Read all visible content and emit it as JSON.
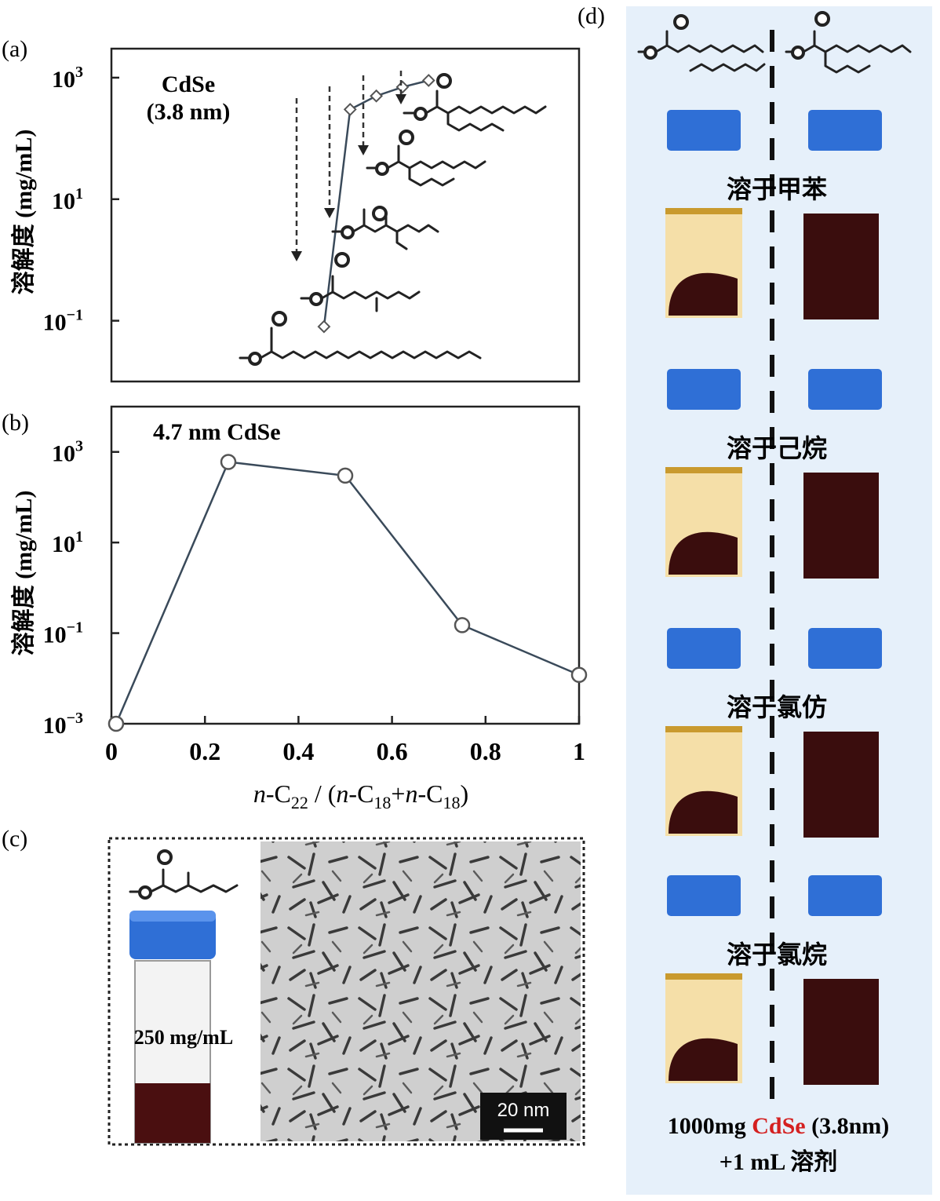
{
  "panel_labels": {
    "a": "(a)",
    "b": "(b)",
    "c": "(c)",
    "d": "(d)"
  },
  "chart_data": [
    {
      "type": "line",
      "panel": "a",
      "title": "CdSe",
      "subtitle": "(3.8 nm)",
      "ylabel": "溶解度 (mg/mL)",
      "yscale": "log",
      "ylim": [
        0.01,
        3000
      ],
      "ytick_labels": [
        {
          "value": 1000,
          "base": "10",
          "exp": "3"
        },
        {
          "value": 10,
          "base": "10",
          "exp": "1"
        },
        {
          "value": 0.1,
          "base": "10",
          "exp": "−1"
        }
      ],
      "xlim": [
        -0.35,
        1.08
      ],
      "x": [
        0.3,
        0.38,
        0.46,
        0.54,
        0.62
      ],
      "y": [
        0.08,
        300,
        500,
        700,
        900
      ],
      "grid": false
    },
    {
      "type": "line",
      "panel": "b",
      "title": "4.7 nm CdSe",
      "xlabel_parts": [
        "n",
        "-C",
        "22",
        " / (",
        "n",
        "-C",
        "18",
        "+",
        "n",
        "-C",
        "18",
        ")"
      ],
      "ylabel": "溶解度 (mg/mL)",
      "yscale": "log",
      "ylim": [
        0.001,
        10000
      ],
      "ytick_labels": [
        {
          "value": 1000,
          "base": "10",
          "exp": "3"
        },
        {
          "value": 10,
          "base": "10",
          "exp": "1"
        },
        {
          "value": 0.1,
          "base": "10",
          "exp": "−1"
        },
        {
          "value": 0.001,
          "base": "10",
          "exp": "−3"
        }
      ],
      "xlim": [
        0,
        1
      ],
      "xticks": [
        0,
        0.2,
        0.4,
        0.6,
        0.8,
        1
      ],
      "xtick_labels": [
        "0",
        "0.2",
        "0.4",
        "0.6",
        "0.8",
        "1"
      ],
      "x": [
        0.01,
        0.25,
        0.5,
        0.75,
        1.0
      ],
      "y": [
        0.001,
        600,
        300,
        0.15,
        0.012
      ],
      "grid": false
    }
  ],
  "panel_c": {
    "concentration_label": "250 mg/mL",
    "scale_bar_label": "20 nm"
  },
  "panel_d": {
    "solvent_labels": [
      "溶于甲苯",
      "溶于己烷",
      "溶于氯仿",
      "溶于氯烷"
    ],
    "caption_line1": {
      "prefix": "1000mg ",
      "highlight": "CdSe",
      "suffix": " (3.8nm)"
    },
    "caption_line2": "+1 mL 溶剂",
    "highlight_color": "#d42020",
    "cap_color": "#2f6fd6",
    "panel_bg_color": "#e6f0fa",
    "dark_liquid_color": "#3a0d0d"
  }
}
